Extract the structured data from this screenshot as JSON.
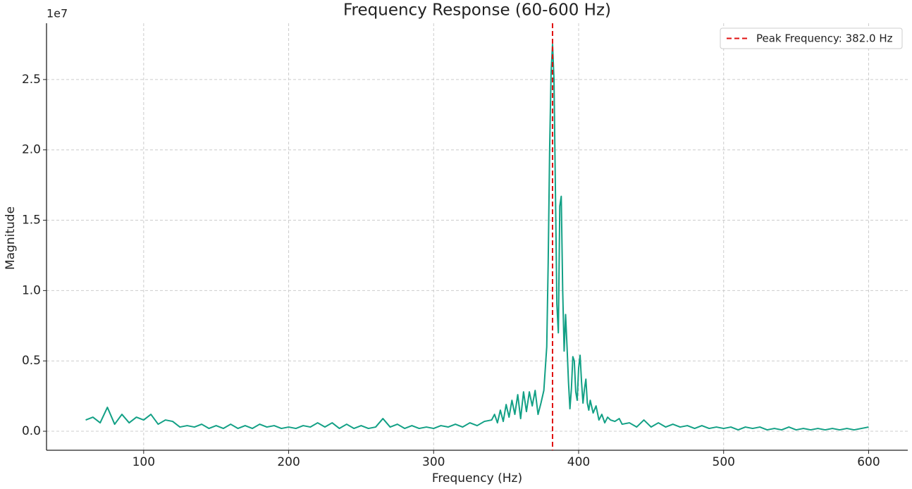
{
  "chart_data": {
    "type": "line",
    "title": "Frequency Response (60-600 Hz)",
    "x_label": "Frequency (Hz)",
    "y_label": "Magnitude",
    "y_offset_label": "1e7",
    "xlim": [
      33,
      627
    ],
    "ylim": [
      -0.135,
      2.9
    ],
    "xticks": [
      100,
      200,
      300,
      400,
      500,
      600
    ],
    "yticks": [
      {
        "value": 0,
        "label": "0.0"
      },
      0.5,
      {
        "value": 1,
        "label": "1.0"
      },
      1.5,
      {
        "value": 2,
        "label": "2.0"
      },
      2.5
    ],
    "grid": true,
    "legend": "upper right",
    "series": [
      {
        "color": "#12a085",
        "x": [
          60,
          65,
          70,
          75,
          80,
          85,
          90,
          95,
          100,
          105,
          110,
          115,
          120,
          125,
          130,
          135,
          140,
          145,
          150,
          155,
          160,
          165,
          170,
          175,
          180,
          185,
          190,
          195,
          200,
          205,
          210,
          215,
          220,
          225,
          230,
          235,
          240,
          245,
          250,
          255,
          260,
          265,
          270,
          275,
          280,
          285,
          290,
          295,
          300,
          305,
          310,
          315,
          320,
          325,
          330,
          335,
          340,
          342,
          344,
          346,
          348,
          350,
          352,
          354,
          356,
          358,
          360,
          362,
          364,
          366,
          368,
          370,
          372,
          374,
          376,
          378,
          379,
          380,
          381,
          382,
          383,
          384,
          385,
          386,
          387,
          388,
          389,
          390,
          391,
          392,
          393,
          394,
          395,
          396,
          397,
          398,
          399,
          400,
          401,
          402,
          403,
          404,
          405,
          406,
          407,
          408,
          410,
          412,
          414,
          416,
          418,
          420,
          422,
          425,
          428,
          430,
          435,
          440,
          445,
          450,
          455,
          460,
          465,
          470,
          475,
          480,
          485,
          490,
          495,
          500,
          505,
          510,
          515,
          520,
          525,
          530,
          535,
          540,
          545,
          550,
          555,
          560,
          565,
          570,
          575,
          580,
          585,
          590,
          595,
          600
        ],
        "values": [
          0.08,
          0.1,
          0.06,
          0.17,
          0.05,
          0.12,
          0.06,
          0.1,
          0.08,
          0.12,
          0.05,
          0.08,
          0.07,
          0.03,
          0.04,
          0.03,
          0.05,
          0.02,
          0.04,
          0.02,
          0.05,
          0.02,
          0.04,
          0.02,
          0.05,
          0.03,
          0.04,
          0.02,
          0.03,
          0.02,
          0.04,
          0.03,
          0.06,
          0.03,
          0.06,
          0.02,
          0.05,
          0.02,
          0.04,
          0.02,
          0.03,
          0.09,
          0.03,
          0.05,
          0.02,
          0.04,
          0.02,
          0.03,
          0.02,
          0.04,
          0.03,
          0.05,
          0.03,
          0.06,
          0.04,
          0.07,
          0.08,
          0.12,
          0.06,
          0.15,
          0.07,
          0.19,
          0.1,
          0.22,
          0.12,
          0.26,
          0.09,
          0.28,
          0.14,
          0.28,
          0.18,
          0.29,
          0.12,
          0.2,
          0.29,
          0.6,
          1.2,
          2.0,
          2.55,
          2.75,
          2.5,
          1.7,
          0.9,
          0.7,
          1.6,
          1.67,
          1.0,
          0.57,
          0.83,
          0.6,
          0.35,
          0.16,
          0.3,
          0.53,
          0.5,
          0.28,
          0.22,
          0.45,
          0.54,
          0.35,
          0.2,
          0.3,
          0.37,
          0.2,
          0.15,
          0.22,
          0.13,
          0.18,
          0.08,
          0.12,
          0.06,
          0.1,
          0.08,
          0.07,
          0.09,
          0.05,
          0.06,
          0.03,
          0.08,
          0.03,
          0.06,
          0.03,
          0.05,
          0.03,
          0.04,
          0.02,
          0.04,
          0.02,
          0.03,
          0.02,
          0.03,
          0.01,
          0.03,
          0.02,
          0.03,
          0.01,
          0.02,
          0.01,
          0.03,
          0.01,
          0.02,
          0.01,
          0.02,
          0.01,
          0.02,
          0.01,
          0.02,
          0.01,
          0.02,
          0.03
        ]
      }
    ],
    "peak_line": {
      "x": 382,
      "label": "Peak Frequency: 382.0 Hz",
      "color": "#e01010"
    }
  }
}
